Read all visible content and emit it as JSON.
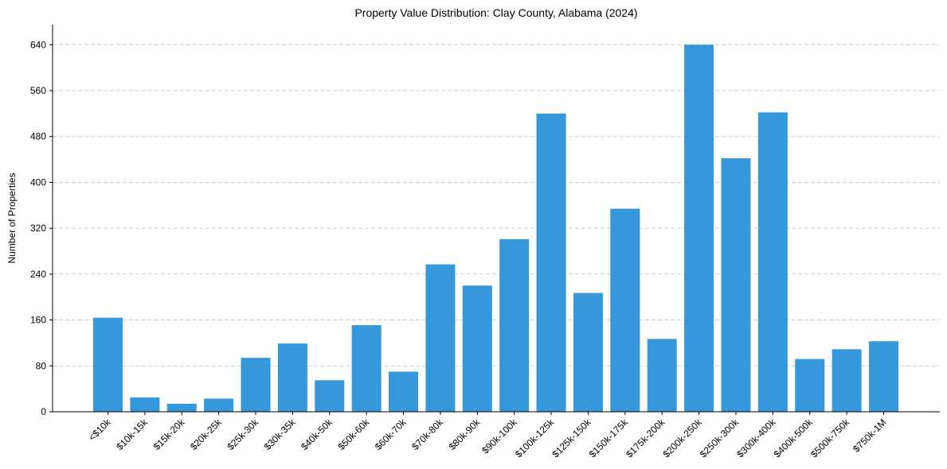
{
  "chart_data": {
    "type": "bar",
    "title": "Property Value Distribution: Clay County, Alabama (2024)",
    "xlabel": "",
    "ylabel": "Number of Properties",
    "ylim": [
      0,
      675
    ],
    "yticks": [
      0,
      80,
      160,
      240,
      320,
      400,
      480,
      560,
      640
    ],
    "grid": "horizontal-dashed",
    "bar_color": "#3498db",
    "categories": [
      "<$10k",
      "$10k-15k",
      "$15k-20k",
      "$20k-25k",
      "$25k-30k",
      "$30k-35k",
      "$40k-50k",
      "$50k-60k",
      "$60k-70k",
      "$70k-80k",
      "$80k-90k",
      "$90k-100k",
      "$100k-125k",
      "$125k-150k",
      "$150k-175k",
      "$175k-200k",
      "$200k-250k",
      "$250k-300k",
      "$300k-400k",
      "$400k-500k",
      "$500k-750k",
      "$750k-1M"
    ],
    "values": [
      164,
      25,
      14,
      23,
      94,
      119,
      55,
      151,
      70,
      257,
      220,
      301,
      520,
      207,
      354,
      127,
      640,
      442,
      522,
      92,
      109,
      123
    ]
  }
}
